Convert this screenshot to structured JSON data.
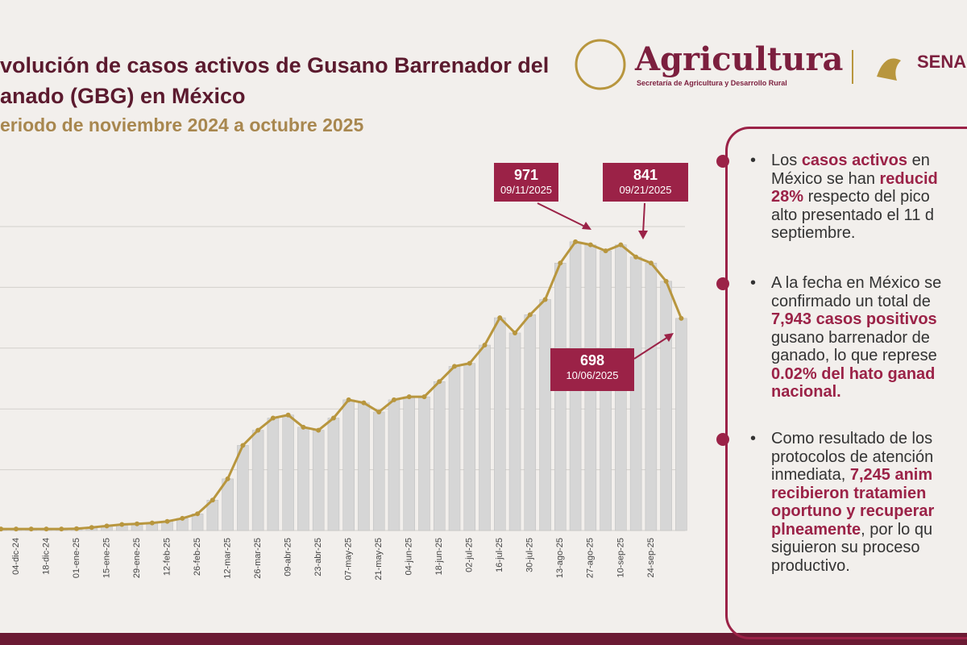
{
  "header": {
    "title_lines": [
      "volución de casos activos de Gusano Barrenador del",
      "anado (GBG) en México"
    ],
    "subtitle": "eriodo de noviembre 2024 a octubre 2025",
    "logo_name": "Agricultura",
    "logo_sub": "Secretaría de Agricultura y Desarrollo Rural",
    "logo2": "SENA"
  },
  "chart_data": {
    "type": "bar-line",
    "categories": [
      null,
      "04-dic-24",
      null,
      "18-dic-24",
      null,
      "01-ene-25",
      null,
      "15-ene-25",
      null,
      "29-ene-25",
      null,
      "12-feb-25",
      null,
      "26-feb-25",
      null,
      "12-mar-25",
      null,
      "26-mar-25",
      null,
      "09-abr-25",
      null,
      "23-abr-25",
      null,
      "07-may-25",
      null,
      "21-may-25",
      null,
      "04-jun-25",
      null,
      "18-jun-25",
      null,
      "02-jul-25",
      null,
      "16-jul-25",
      null,
      "30-jul-25",
      null,
      "13-ago-25",
      null,
      "27-ago-25",
      null,
      "10-sep-25",
      null,
      "24-sep-25",
      null,
      null
    ],
    "values": [
      5,
      5,
      5,
      5,
      5,
      6,
      10,
      15,
      20,
      22,
      25,
      30,
      40,
      55,
      100,
      170,
      280,
      330,
      370,
      380,
      340,
      330,
      370,
      430,
      420,
      390,
      430,
      440,
      440,
      490,
      540,
      550,
      610,
      700,
      650,
      710,
      760,
      880,
      950,
      940,
      920,
      940,
      900,
      880,
      820,
      698
    ],
    "color": "#b8963e",
    "bar_color": "#d6d6d6",
    "ylim": [
      0,
      1000
    ],
    "ygrid": [
      0,
      200,
      400,
      600,
      800,
      1000
    ],
    "grid": true,
    "annotations": [
      {
        "value": "971",
        "date": "09/11/2025"
      },
      {
        "value": "841",
        "date": "09/21/2025"
      },
      {
        "value": "698",
        "date": "10/06/2025"
      }
    ]
  },
  "panel": {
    "bullets": [
      [
        [
          {
            "t": "Los "
          },
          {
            "t": "casos activos",
            "b": true
          },
          {
            "t": " en"
          }
        ],
        [
          {
            "t": "México se han "
          },
          {
            "t": "reducid",
            "b": true
          }
        ],
        [
          {
            "t": "28%",
            "b": true
          },
          {
            "t": " respecto del pico"
          }
        ],
        [
          {
            "t": "alto presentado el 11 d"
          }
        ],
        [
          {
            "t": "septiembre."
          }
        ]
      ],
      [
        [
          {
            "t": "A la fecha en México se"
          }
        ],
        [
          {
            "t": "confirmado un total de"
          }
        ],
        [
          {
            "t": "7,943 casos positivos",
            "b": true
          }
        ],
        [
          {
            "t": "gusano barrenador de"
          }
        ],
        [
          {
            "t": "ganado, lo que represe"
          }
        ],
        [
          {
            "t": "0.02% del hato ganad",
            "b": true
          }
        ],
        [
          {
            "t": "nacional.",
            "b": true
          }
        ]
      ],
      [
        [
          {
            "t": "Como resultado de los"
          }
        ],
        [
          {
            "t": "protocolos de atención"
          }
        ],
        [
          {
            "t": "inmediata, "
          },
          {
            "t": "7,245 anim",
            "b": true
          }
        ],
        [
          {
            "t": "recibieron tratamien",
            "b": true
          }
        ],
        [
          {
            "t": "oportuno y recuperar",
            "b": true
          }
        ],
        [
          {
            "t": "plneamente",
            "b": true
          },
          {
            "t": ", por lo qu"
          }
        ],
        [
          {
            "t": "siguieron su proceso"
          }
        ],
        [
          {
            "t": "productivo."
          }
        ]
      ]
    ]
  }
}
